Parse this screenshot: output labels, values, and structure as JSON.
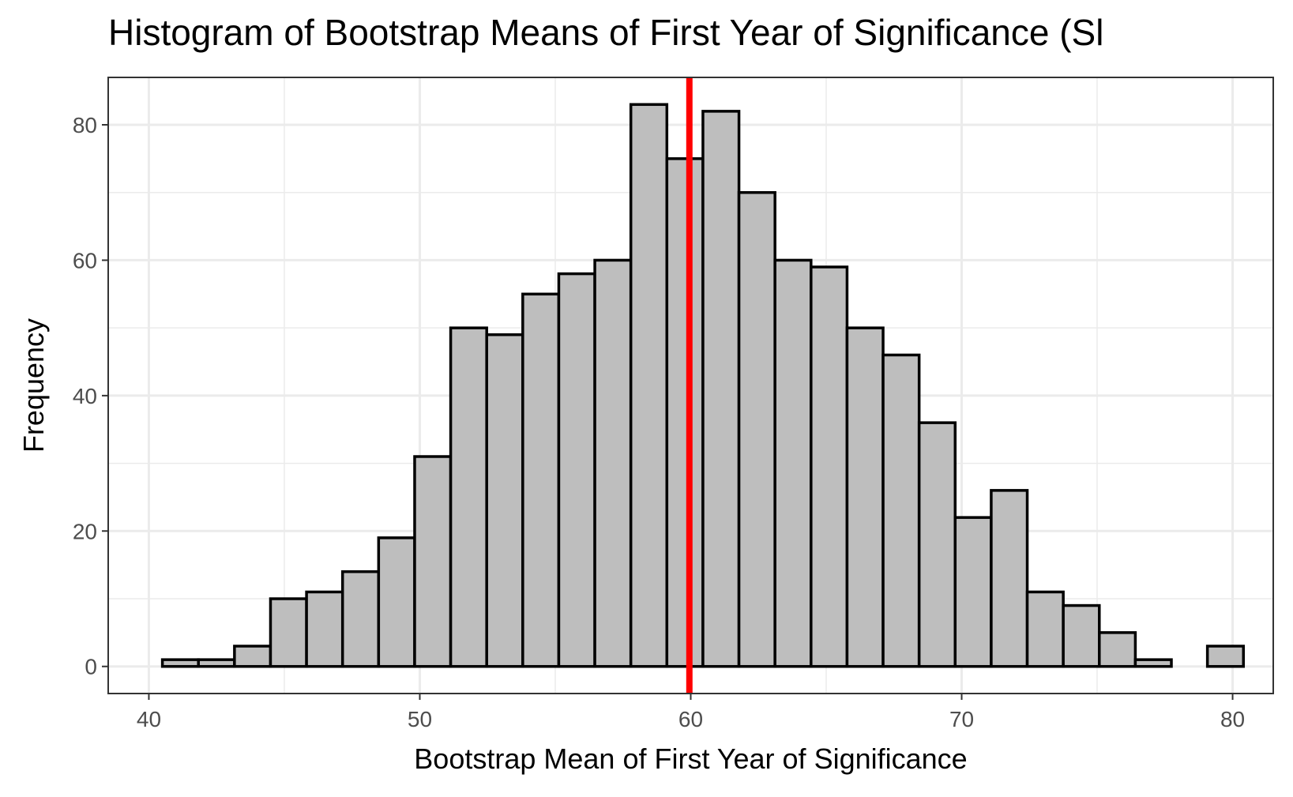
{
  "chart_data": {
    "type": "bar",
    "title": "Histogram of Bootstrap Means of First Year of Significance (Sl",
    "xlabel": "Bootstrap Mean of First Year of Significance",
    "ylabel": "Frequency",
    "xlim": [
      38.5,
      81.5
    ],
    "ylim": [
      -4,
      87
    ],
    "x_ticks": [
      40,
      50,
      60,
      70,
      80
    ],
    "y_ticks": [
      0,
      20,
      40,
      60,
      80
    ],
    "grid": true,
    "bins": [
      {
        "x0": 40.5,
        "x1": 41.83,
        "count": 1
      },
      {
        "x0": 41.83,
        "x1": 43.16,
        "count": 1
      },
      {
        "x0": 43.16,
        "x1": 44.49,
        "count": 3
      },
      {
        "x0": 44.49,
        "x1": 45.82,
        "count": 10
      },
      {
        "x0": 45.82,
        "x1": 47.15,
        "count": 11
      },
      {
        "x0": 47.15,
        "x1": 48.48,
        "count": 14
      },
      {
        "x0": 48.48,
        "x1": 49.81,
        "count": 19
      },
      {
        "x0": 49.81,
        "x1": 51.14,
        "count": 31
      },
      {
        "x0": 51.14,
        "x1": 52.47,
        "count": 50
      },
      {
        "x0": 52.47,
        "x1": 53.8,
        "count": 49
      },
      {
        "x0": 53.8,
        "x1": 55.13,
        "count": 55
      },
      {
        "x0": 55.13,
        "x1": 56.46,
        "count": 58
      },
      {
        "x0": 56.46,
        "x1": 57.79,
        "count": 60
      },
      {
        "x0": 57.79,
        "x1": 59.12,
        "count": 83
      },
      {
        "x0": 59.12,
        "x1": 60.45,
        "count": 75
      },
      {
        "x0": 60.45,
        "x1": 61.78,
        "count": 82
      },
      {
        "x0": 61.78,
        "x1": 63.11,
        "count": 70
      },
      {
        "x0": 63.11,
        "x1": 64.44,
        "count": 60
      },
      {
        "x0": 64.44,
        "x1": 65.77,
        "count": 59
      },
      {
        "x0": 65.77,
        "x1": 67.1,
        "count": 50
      },
      {
        "x0": 67.1,
        "x1": 68.43,
        "count": 46
      },
      {
        "x0": 68.43,
        "x1": 69.76,
        "count": 36
      },
      {
        "x0": 69.76,
        "x1": 71.09,
        "count": 22
      },
      {
        "x0": 71.09,
        "x1": 72.42,
        "count": 26
      },
      {
        "x0": 72.42,
        "x1": 73.75,
        "count": 11
      },
      {
        "x0": 73.75,
        "x1": 75.08,
        "count": 9
      },
      {
        "x0": 75.08,
        "x1": 76.41,
        "count": 5
      },
      {
        "x0": 76.41,
        "x1": 77.74,
        "count": 1
      },
      {
        "x0": 77.74,
        "x1": 79.07,
        "count": 0
      },
      {
        "x0": 79.07,
        "x1": 80.4,
        "count": 3
      }
    ],
    "mean_line": {
      "x": 59.95,
      "color": "#ff0000"
    },
    "bar_fill": "#bebebe",
    "bar_stroke": "#000000"
  }
}
